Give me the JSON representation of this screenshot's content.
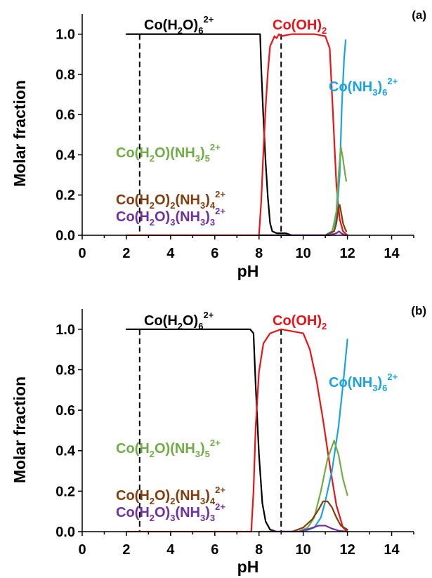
{
  "chart_data": [
    {
      "type": "line",
      "panel_label": "(a)",
      "xlabel": "pH",
      "ylabel": "Molar fraction",
      "xlim": [
        0,
        15
      ],
      "ylim": [
        0,
        1.1
      ],
      "xticks": [
        "0",
        "2",
        "4",
        "6",
        "8",
        "10",
        "12",
        "14"
      ],
      "yticks": [
        "0.0",
        "0.2",
        "0.4",
        "0.6",
        "0.8",
        "1.0"
      ],
      "vertical_dashed_lines_x": [
        2.6,
        9.0
      ],
      "series": [
        {
          "name": "Co(H2O)6 2+",
          "color": "#000000",
          "points": [
            [
              2.0,
              1.0
            ],
            [
              8.05,
              1.0
            ],
            [
              8.1,
              0.83
            ],
            [
              8.2,
              0.58
            ],
            [
              8.3,
              0.36
            ],
            [
              8.4,
              0.19
            ],
            [
              8.5,
              0.06
            ],
            [
              8.6,
              0.02
            ],
            [
              8.8,
              0.01
            ],
            [
              9.2,
              0.01
            ],
            [
              9.5,
              0.0
            ]
          ]
        },
        {
          "name": "Co(OH)2",
          "color": "#e8141a",
          "points": [
            [
              2.0,
              0.0
            ],
            [
              8.0,
              0.0
            ],
            [
              8.1,
              0.17
            ],
            [
              8.2,
              0.42
            ],
            [
              8.3,
              0.64
            ],
            [
              8.4,
              0.81
            ],
            [
              8.5,
              0.94
            ],
            [
              8.7,
              0.99
            ],
            [
              8.8,
              0.98
            ],
            [
              8.9,
              1.0
            ],
            [
              9.0,
              0.99
            ],
            [
              9.5,
              1.0
            ],
            [
              10.5,
              1.0
            ],
            [
              11.0,
              0.99
            ],
            [
              11.2,
              0.93
            ],
            [
              11.35,
              0.6
            ],
            [
              11.5,
              0.25
            ],
            [
              11.65,
              0.08
            ],
            [
              11.8,
              0.02
            ],
            [
              12.0,
              0.0
            ]
          ]
        },
        {
          "name": "Co(NH3)6 2+",
          "color": "#1aa3e0",
          "points": [
            [
              8.0,
              0.0
            ],
            [
              11.0,
              0.0
            ],
            [
              11.3,
              0.02
            ],
            [
              11.5,
              0.08
            ],
            [
              11.65,
              0.3
            ],
            [
              11.75,
              0.65
            ],
            [
              11.85,
              0.88
            ],
            [
              11.92,
              0.97
            ]
          ]
        },
        {
          "name": "Co(H2O)(NH3)5 2+",
          "color": "#70ad47",
          "points": [
            [
              8.0,
              0.0
            ],
            [
              11.0,
              0.0
            ],
            [
              11.3,
              0.01
            ],
            [
              11.5,
              0.12
            ],
            [
              11.6,
              0.3
            ],
            [
              11.7,
              0.44
            ],
            [
              11.8,
              0.38
            ],
            [
              11.9,
              0.3
            ],
            [
              11.95,
              0.27
            ]
          ]
        },
        {
          "name": "Co(H2O)2(NH3)4 2+",
          "color": "#843c0c",
          "points": [
            [
              8.0,
              0.0
            ],
            [
              11.0,
              0.0
            ],
            [
              11.4,
              0.02
            ],
            [
              11.5,
              0.06
            ],
            [
              11.6,
              0.14
            ],
            [
              11.65,
              0.15
            ],
            [
              11.72,
              0.11
            ],
            [
              11.8,
              0.06
            ],
            [
              11.9,
              0.03
            ],
            [
              11.95,
              0.02
            ]
          ]
        },
        {
          "name": "Co(H2O)3(NH3)3 2+",
          "color": "#7030a0",
          "points": [
            [
              8.0,
              0.0
            ],
            [
              11.2,
              0.0
            ],
            [
              11.5,
              0.01
            ],
            [
              11.62,
              0.02
            ],
            [
              11.72,
              0.01
            ],
            [
              11.9,
              0.0
            ]
          ]
        }
      ]
    },
    {
      "type": "line",
      "panel_label": "(b)",
      "xlabel": "pH",
      "ylabel": "Molar fraction",
      "xlim": [
        0,
        15
      ],
      "ylim": [
        0,
        1.1
      ],
      "xticks": [
        "0",
        "2",
        "4",
        "6",
        "8",
        "10",
        "12",
        "14"
      ],
      "yticks": [
        "0.0",
        "0.2",
        "0.4",
        "0.6",
        "0.8",
        "1.0"
      ],
      "vertical_dashed_lines_x": [
        2.6,
        9.0
      ],
      "series": [
        {
          "name": "Co(H2O)6 2+",
          "color": "#000000",
          "points": [
            [
              2.0,
              1.0
            ],
            [
              7.6,
              1.0
            ],
            [
              7.75,
              0.98
            ],
            [
              7.85,
              0.72
            ],
            [
              8.0,
              0.38
            ],
            [
              8.15,
              0.14
            ],
            [
              8.3,
              0.05
            ],
            [
              8.5,
              0.01
            ],
            [
              8.8,
              0.0
            ]
          ]
        },
        {
          "name": "Co(OH)2",
          "color": "#e8141a",
          "points": [
            [
              2.0,
              0.0
            ],
            [
              7.65,
              0.0
            ],
            [
              7.75,
              0.2
            ],
            [
              7.85,
              0.52
            ],
            [
              8.0,
              0.79
            ],
            [
              8.2,
              0.93
            ],
            [
              8.5,
              0.98
            ],
            [
              9.0,
              1.0
            ],
            [
              9.5,
              0.99
            ],
            [
              10.0,
              0.98
            ],
            [
              10.3,
              0.9
            ],
            [
              10.6,
              0.75
            ],
            [
              10.9,
              0.55
            ],
            [
              11.2,
              0.33
            ],
            [
              11.5,
              0.13
            ],
            [
              11.8,
              0.02
            ],
            [
              12.0,
              0.0
            ]
          ]
        },
        {
          "name": "Co(NH3)6 2+",
          "color": "#1aa3e0",
          "points": [
            [
              8.0,
              0.0
            ],
            [
              10.0,
              0.0
            ],
            [
              10.5,
              0.02
            ],
            [
              10.8,
              0.07
            ],
            [
              11.0,
              0.15
            ],
            [
              11.3,
              0.3
            ],
            [
              11.6,
              0.52
            ],
            [
              11.85,
              0.78
            ],
            [
              12.0,
              0.95
            ]
          ]
        },
        {
          "name": "Co(H2O)(NH3)5 2+",
          "color": "#70ad47",
          "points": [
            [
              8.0,
              0.0
            ],
            [
              9.8,
              0.0
            ],
            [
              10.2,
              0.02
            ],
            [
              10.5,
              0.07
            ],
            [
              10.8,
              0.2
            ],
            [
              11.1,
              0.36
            ],
            [
              11.4,
              0.45
            ],
            [
              11.6,
              0.38
            ],
            [
              11.8,
              0.26
            ],
            [
              12.0,
              0.18
            ]
          ]
        },
        {
          "name": "Co(H2O)2(NH3)4 2+",
          "color": "#843c0c",
          "points": [
            [
              8.5,
              0.0
            ],
            [
              9.5,
              0.0
            ],
            [
              10.0,
              0.02
            ],
            [
              10.4,
              0.06
            ],
            [
              10.7,
              0.11
            ],
            [
              10.9,
              0.15
            ],
            [
              11.1,
              0.15
            ],
            [
              11.3,
              0.12
            ],
            [
              11.5,
              0.07
            ],
            [
              11.7,
              0.03
            ],
            [
              12.0,
              0.01
            ]
          ]
        },
        {
          "name": "Co(H2O)3(NH3)3 2+",
          "color": "#7030a0",
          "points": [
            [
              8.5,
              0.0
            ],
            [
              9.8,
              0.0
            ],
            [
              10.3,
              0.015
            ],
            [
              10.7,
              0.03
            ],
            [
              11.0,
              0.03
            ],
            [
              11.3,
              0.015
            ],
            [
              11.6,
              0.005
            ],
            [
              12.0,
              0.0
            ]
          ]
        }
      ]
    }
  ]
}
